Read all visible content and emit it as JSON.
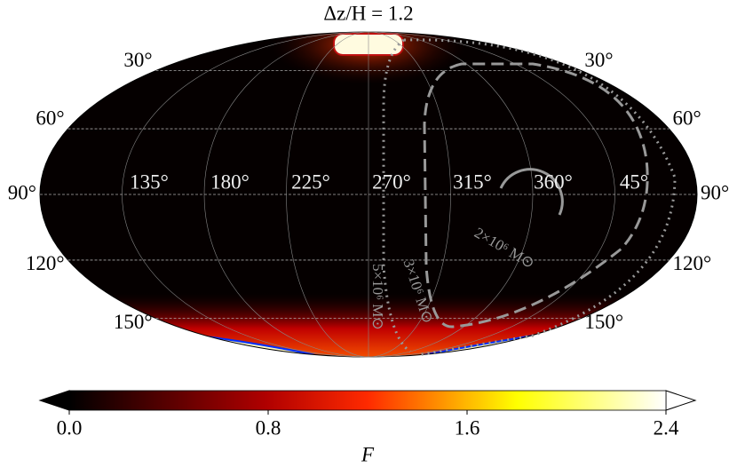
{
  "chart_data": {
    "type": "skymap",
    "title": "Δz/H = 1.2",
    "lat_ticks": [
      {
        "value": 30,
        "label": "30°"
      },
      {
        "value": 60,
        "label": "60°"
      },
      {
        "value": 90,
        "label": "90°"
      },
      {
        "value": 120,
        "label": "120°"
      },
      {
        "value": 150,
        "label": "150°"
      }
    ],
    "lon_labels": [
      "135°",
      "180°",
      "225°",
      "270°",
      "315°",
      "360°",
      "45°"
    ],
    "contour_labels": [
      "2×10⁶ M⊙",
      "3×10⁶ M⊙",
      "5×10⁶ M⊙"
    ],
    "colorbar": {
      "label": "F",
      "lim": [
        0,
        2.4
      ],
      "ticks": [
        {
          "value": 0,
          "label": "0.0"
        },
        0.8,
        1.6,
        2.4
      ]
    },
    "grid": true
  }
}
